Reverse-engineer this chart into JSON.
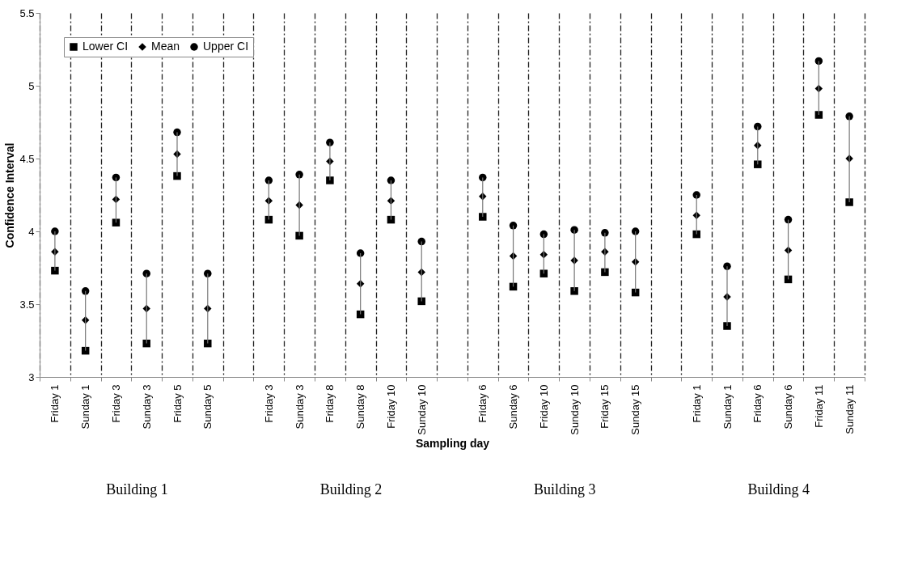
{
  "chart_data": {
    "type": "scatter",
    "xlabel": "Sampling day",
    "ylabel": "Confidence Interval",
    "categories": [
      "Friday 1",
      "Sunday 1",
      "Friday 3",
      "Sunday 3",
      "Friday 5",
      "Sunday 5",
      null,
      "Friday 3",
      "Sunday 3",
      "Friday 8",
      "Sunday 8",
      "Friday 10",
      "Sunday 10",
      null,
      "Friday 6",
      "Sunday 6",
      "Friday 10",
      "Sunday 10",
      "Friday 15",
      "Sunday 15",
      null,
      "Friday 1",
      "Sunday 1",
      "Friday 6",
      "Sunday 6",
      "Friday 11",
      "Sunday 11"
    ],
    "series": [
      {
        "name": "Lower CI",
        "color": "#000000",
        "marker": "square",
        "values": [
          3.73,
          3.18,
          4.06,
          3.23,
          4.38,
          3.23,
          null,
          4.08,
          3.97,
          4.35,
          3.43,
          4.08,
          3.52,
          null,
          4.1,
          3.62,
          3.71,
          3.59,
          3.72,
          3.58,
          null,
          3.98,
          3.35,
          4.46,
          3.67,
          4.8,
          4.2
        ]
      },
      {
        "name": "Mean",
        "color": "#000000",
        "marker": "diamond",
        "values": [
          3.86,
          3.39,
          4.22,
          3.47,
          4.53,
          3.47,
          null,
          4.21,
          4.18,
          4.48,
          3.64,
          4.21,
          3.72,
          null,
          4.24,
          3.83,
          3.84,
          3.8,
          3.86,
          3.79,
          null,
          4.11,
          3.55,
          4.59,
          3.87,
          4.98,
          4.5
        ]
      },
      {
        "name": "Upper CI",
        "color": "#000000",
        "marker": "circle",
        "values": [
          4.0,
          3.59,
          4.37,
          3.71,
          4.68,
          3.71,
          null,
          4.35,
          4.39,
          4.61,
          3.85,
          4.35,
          3.93,
          null,
          4.37,
          4.04,
          3.98,
          4.01,
          3.99,
          4.0,
          null,
          4.25,
          3.76,
          4.72,
          4.08,
          5.17,
          4.79
        ]
      }
    ],
    "ylim": [
      3,
      5.5
    ],
    "yticks": [
      3,
      3.5,
      4,
      4.5,
      5,
      5.5
    ],
    "grid": "x",
    "legend": "top left",
    "annotations": [
      "Building 1",
      "Building 2",
      "Building 3",
      "Building 4"
    ]
  }
}
